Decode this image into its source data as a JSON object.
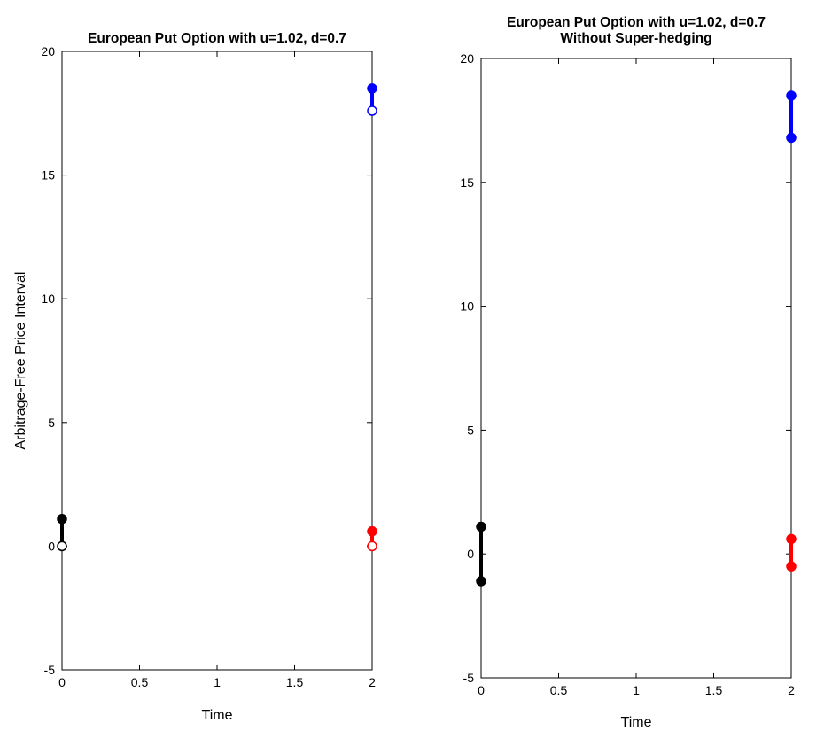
{
  "chart_data": [
    {
      "type": "line",
      "title": "European Put Option with u=1.02, d=0.7",
      "subtitle": "",
      "xlabel": "Time",
      "ylabel": "Arbitrage-Free Price Interval",
      "xlim": [
        0,
        2
      ],
      "ylim": [
        -5,
        20
      ],
      "xticks": [
        "0",
        "0.5",
        "1",
        "1.5",
        "2"
      ],
      "xtick_values": [
        0,
        0.5,
        1,
        1.5,
        2
      ],
      "yticks": [
        "-5",
        "0",
        "5",
        "10",
        "15",
        "20"
      ],
      "ytick_values": [
        -5,
        0,
        5,
        10,
        15,
        20
      ],
      "grid": false,
      "series": [
        {
          "color": "#000000",
          "x": 0,
          "low": 0,
          "high": 1.1,
          "low_marker": "open",
          "high_marker": "filled"
        },
        {
          "color": "#0000ff",
          "x": 2,
          "low": 17.6,
          "high": 18.5,
          "low_marker": "open",
          "high_marker": "filled"
        },
        {
          "color": "#ff0000",
          "x": 2,
          "low": 0,
          "high": 0.6,
          "low_marker": "open",
          "high_marker": "filled"
        }
      ]
    },
    {
      "type": "line",
      "title": "European Put Option with u=1.02, d=0.7",
      "subtitle": "Without Super-hedging",
      "xlabel": "Time",
      "ylabel": "",
      "xlim": [
        0,
        2
      ],
      "ylim": [
        -5,
        20
      ],
      "xticks": [
        "0",
        "0.5",
        "1",
        "1.5",
        "2"
      ],
      "xtick_values": [
        0,
        0.5,
        1,
        1.5,
        2
      ],
      "yticks": [
        "-5",
        "0",
        "5",
        "10",
        "15",
        "20"
      ],
      "ytick_values": [
        -5,
        0,
        5,
        10,
        15,
        20
      ],
      "grid": false,
      "series": [
        {
          "color": "#000000",
          "x": 0,
          "low": -1.1,
          "high": 1.1,
          "low_marker": "filled",
          "high_marker": "filled"
        },
        {
          "color": "#0000ff",
          "x": 2,
          "low": 16.8,
          "high": 18.5,
          "low_marker": "filled",
          "high_marker": "filled"
        },
        {
          "color": "#ff0000",
          "x": 2,
          "low": -0.5,
          "high": 0.6,
          "low_marker": "filled",
          "high_marker": "filled"
        }
      ]
    }
  ]
}
